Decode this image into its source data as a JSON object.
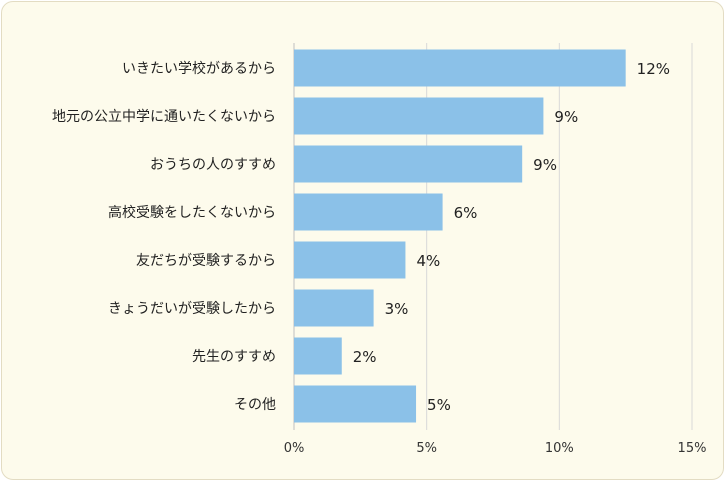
{
  "chart_data": {
    "type": "bar",
    "orientation": "horizontal",
    "categories": [
      "いきたい学校があるから",
      "地元の公立中学に通いたくないから",
      "おうちの人のすすめ",
      "高校受験をしたくないから",
      "友だちが受験するから",
      "きょうだいが受験したから",
      "先生のすすめ",
      "その他"
    ],
    "values": [
      12.5,
      9.4,
      8.6,
      5.6,
      4.2,
      3.0,
      1.8,
      4.6
    ],
    "value_labels": [
      "12%",
      "9%",
      "9%",
      "6%",
      "4%",
      "3%",
      "2%",
      "5%"
    ],
    "xlim": [
      0,
      15
    ],
    "x_ticks": [
      0,
      5,
      10,
      15
    ],
    "x_tick_labels": [
      "0%",
      "5%",
      "10%",
      "15%"
    ],
    "grid": true,
    "bar_color": "#8bc1e8"
  }
}
